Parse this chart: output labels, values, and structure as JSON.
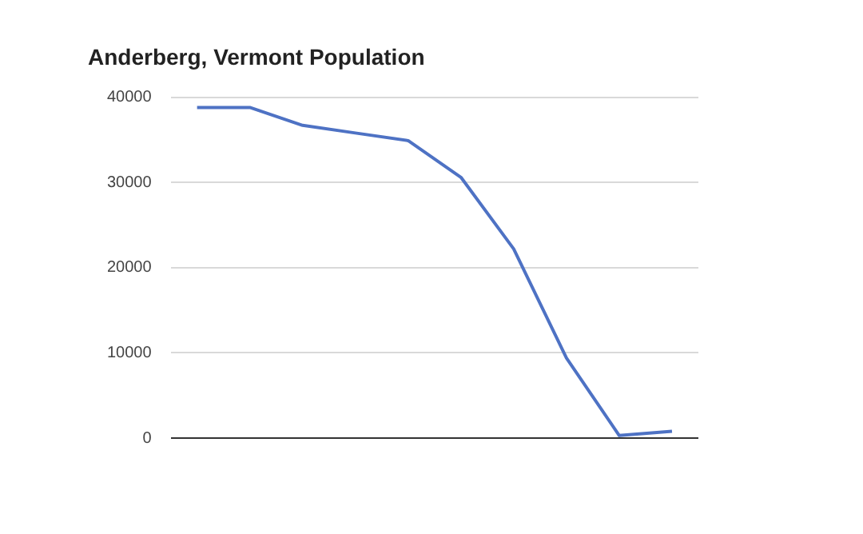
{
  "chart_data": {
    "type": "line",
    "title": "Anderberg, Vermont Population",
    "categories": [
      null,
      null,
      null,
      null,
      null,
      null,
      null,
      null,
      null,
      null
    ],
    "series": [
      {
        "color": "#4e72c4",
        "values": [
          38800,
          38800,
          36700,
          35800,
          34900,
          30600,
          22200,
          9400,
          300,
          800
        ]
      }
    ],
    "ylim": [
      0,
      40000
    ],
    "yticks": [
      0,
      10000,
      20000,
      30000,
      40000
    ],
    "grid": "y",
    "legend": false,
    "marker": "none",
    "line_style": "solid"
  }
}
